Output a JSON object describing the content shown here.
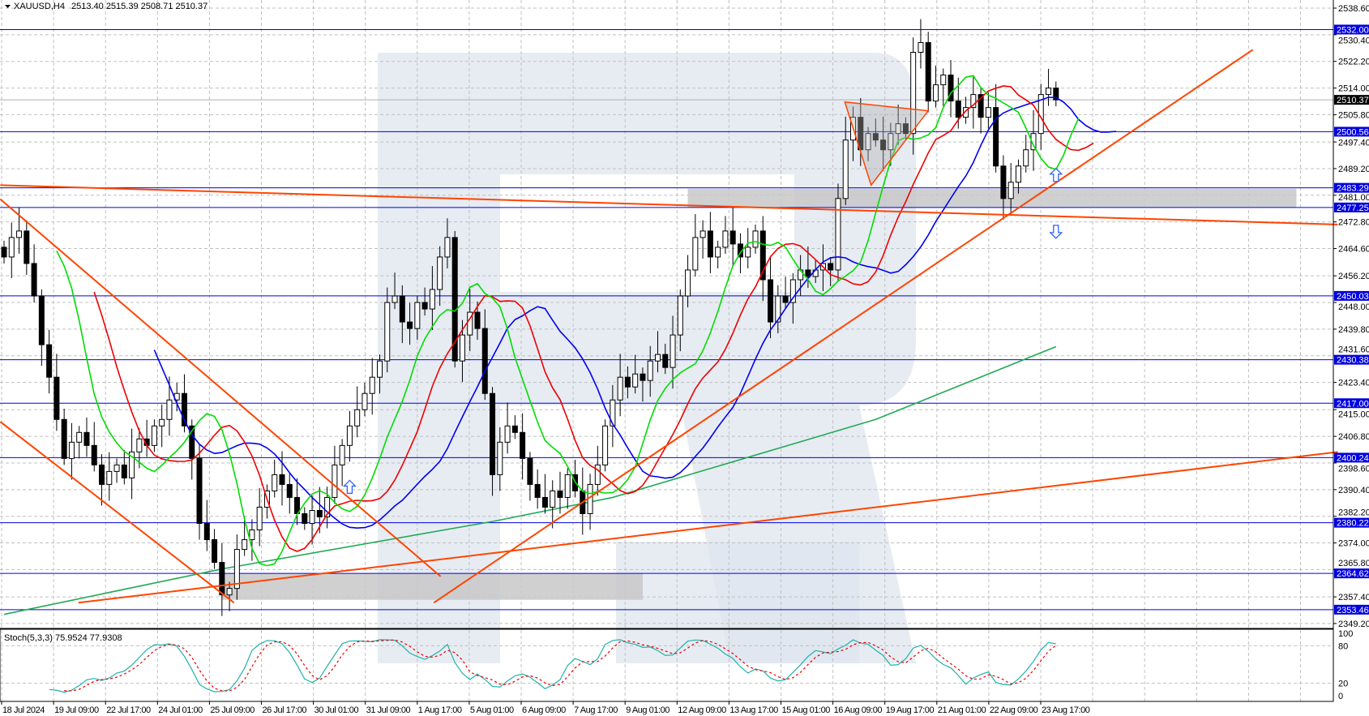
{
  "header": {
    "symbol": "XAUUSD,H4",
    "ohlc": "2513.40 2515.39 2508.71 2510.37"
  },
  "colors": {
    "level_line": "#0000e0",
    "trend_line": "#ff4500",
    "lips": "#00dd00",
    "teeth": "#ee0000",
    "jaw": "#0000ee",
    "long_ma": "#22aa55",
    "stoch_main": "#20b2aa",
    "stoch_signal": "#ee0000",
    "zone": "#c8c8c8",
    "watermark": "#dfe5ef",
    "arrow": "#3060ff"
  },
  "chart_data": {
    "type": "candlestick",
    "symbol": "XAUUSD",
    "timeframe": "H4",
    "ylim": [
      2349.2,
      2538.6
    ],
    "y_ticks": [
      "2538.60",
      "2530.40",
      "2522.20",
      "2514.00",
      "2505.80",
      "2497.40",
      "2489.20",
      "2481.00",
      "2472.80",
      "2464.60",
      "2456.20",
      "2448.00",
      "2439.80",
      "2431.60",
      "2423.40",
      "2415.00",
      "2406.80",
      "2398.60",
      "2390.40",
      "2382.20",
      "2374.00",
      "2365.80",
      "2357.40",
      "2349.20"
    ],
    "x_labels": [
      "18 Jul 2024",
      "19 Jul 09:00",
      "22 Jul 17:00",
      "24 Jul 01:00",
      "25 Jul 09:00",
      "26 Jul 17:00",
      "30 Jul 01:00",
      "31 Jul 09:00",
      "1 Aug 17:00",
      "5 Aug 01:00",
      "6 Aug 09:00",
      "7 Aug 17:00",
      "9 Aug 01:00",
      "12 Aug 09:00",
      "13 Aug 17:00",
      "15 Aug 01:00",
      "16 Aug 09:00",
      "19 Aug 17:00",
      "21 Aug 01:00",
      "22 Aug 09:00",
      "23 Aug 17:00"
    ],
    "grid": true,
    "closes": [
      2462,
      2468,
      2470,
      2460,
      2450,
      2435,
      2425,
      2412,
      2400,
      2405,
      2408,
      2404,
      2398,
      2392,
      2396,
      2398,
      2394,
      2402,
      2406,
      2404,
      2410,
      2412,
      2418,
      2420,
      2410,
      2400,
      2380,
      2375,
      2368,
      2358,
      2360,
      2372,
      2375,
      2378,
      2385,
      2390,
      2395,
      2392,
      2388,
      2383,
      2380,
      2384,
      2382,
      2388,
      2398,
      2404,
      2410,
      2415,
      2420,
      2425,
      2430,
      2448,
      2450,
      2442,
      2440,
      2448,
      2446,
      2452,
      2462,
      2468,
      2430,
      2438,
      2445,
      2440,
      2420,
      2395,
      2405,
      2410,
      2408,
      2400,
      2392,
      2388,
      2385,
      2390,
      2388,
      2395,
      2390,
      2383,
      2392,
      2398,
      2410,
      2418,
      2425,
      2422,
      2426,
      2424,
      2430,
      2432,
      2428,
      2438,
      2450,
      2458,
      2468,
      2470,
      2462,
      2465,
      2470,
      2466,
      2462,
      2465,
      2470,
      2455,
      2442,
      2450,
      2448,
      2455,
      2458,
      2456,
      2458,
      2460,
      2458,
      2480,
      2498,
      2505,
      2495,
      2500,
      2498,
      2495,
      2500,
      2503,
      2500,
      2525,
      2528,
      2510,
      2515,
      2518,
      2510,
      2505,
      2508,
      2512,
      2505,
      2508,
      2490,
      2480,
      2485,
      2490,
      2495,
      2500,
      2512,
      2514,
      2510.37
    ],
    "last_price": "2510.37",
    "levels": [
      "2532.00",
      "2500.56",
      "2483.29",
      "2477.25",
      "2450.03",
      "2430.38",
      "2417.00",
      "2400.24",
      "2380.22",
      "2364.62",
      "2353.46"
    ],
    "trend_lines": [
      {
        "from": [
          -0.5,
          2484.1
        ],
        "to": [
          177.5,
          2472.0
        ]
      },
      {
        "from": [
          9.9,
          2355.6
        ],
        "to": [
          177.5,
          2402.0
        ]
      },
      {
        "from": [
          57.2,
          2355.6
        ],
        "to": [
          166.2,
          2525.8
        ]
      },
      {
        "from": [
          -0.5,
          2479.8
        ],
        "to": [
          58.1,
          2363.7
        ]
      },
      {
        "from": [
          -0.5,
          2411.3
        ],
        "to": [
          30.6,
          2355.6
        ]
      }
    ],
    "triangle": [
      [
        111.9,
        2509.7
      ],
      [
        123.0,
        2507.0
      ],
      [
        115.4,
        2484.1
      ]
    ],
    "zones": [
      {
        "from_bar": 91,
        "to_bar": 172,
        "low": 2477.3,
        "high": 2483.0
      },
      {
        "from_bar": 29,
        "to_bar": 85,
        "low": 2356.5,
        "high": 2364.6
      }
    ],
    "arrows": [
      {
        "bar": 46,
        "price": 2391,
        "dir": "up"
      },
      {
        "bar": 140,
        "price": 2487,
        "dir": "up"
      },
      {
        "bar": 140,
        "price": 2470,
        "dir": "down"
      }
    ],
    "ma_long": [
      [
        0,
        2352
      ],
      [
        29,
        2366
      ],
      [
        65,
        2380.6
      ],
      [
        81,
        2388
      ],
      [
        116,
        2412
      ],
      [
        140,
        2434.4
      ]
    ],
    "indicator": {
      "label": "Stoch(5,3,3) 75.9524 77.9308",
      "levels": [
        "100",
        "80",
        "20",
        "0"
      ],
      "ylim": [
        0,
        100
      ]
    }
  }
}
